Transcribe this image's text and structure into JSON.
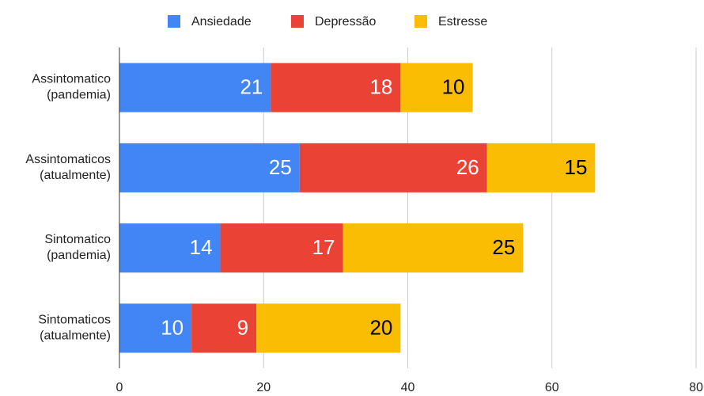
{
  "chart_data": {
    "type": "stacked-bar-horizontal",
    "categories": [
      [
        "Assintomatico",
        "(pandemia)"
      ],
      [
        "Assintomaticos",
        "(atualmente)"
      ],
      [
        "Sintomatico",
        "(pandemia)"
      ],
      [
        "Sintomaticos",
        "(atualmente)"
      ]
    ],
    "series": [
      {
        "name": "Ansiedade",
        "color": "#4285f4",
        "label_color": "#ffffff",
        "values": [
          21,
          25,
          14,
          10
        ]
      },
      {
        "name": "Depressão",
        "color": "#ea4335",
        "label_color": "#ffffff",
        "values": [
          18,
          26,
          17,
          9
        ]
      },
      {
        "name": "Estresse",
        "color": "#fbbc04",
        "label_color": "#000000",
        "values": [
          10,
          15,
          25,
          20
        ]
      }
    ],
    "xlim": [
      0,
      80
    ],
    "xticks": [
      0,
      20,
      40,
      60,
      80
    ],
    "grid": true,
    "legend": "top"
  }
}
